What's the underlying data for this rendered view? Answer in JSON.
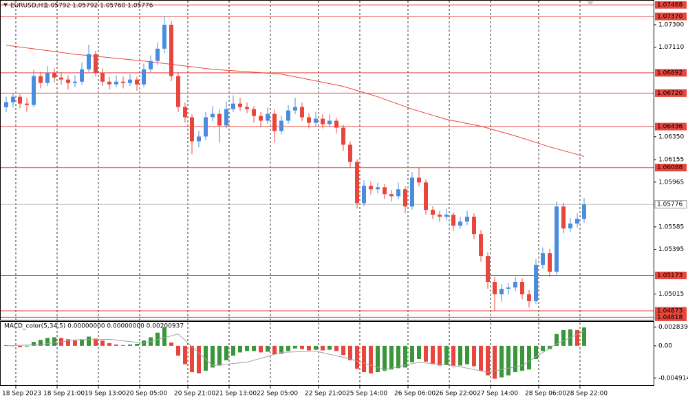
{
  "chart_data": [
    {
      "type": "candlestick",
      "title": "EURUSD,H1",
      "ohlc_text": "1.05792 1.05792 1.05760 1.05776",
      "bull_color": "#4a8de0",
      "bear_color": "#e8453c",
      "ma_color": "#e8453c",
      "level_color": "#e8453c",
      "ylim": [
        1.04797,
        1.07504
      ],
      "yticks": [
        {
          "value": 1.073,
          "label": "1.07300"
        },
        {
          "value": 1.0711,
          "label": "1.07110"
        },
        {
          "value": 1.0635,
          "label": "1.06350"
        },
        {
          "value": 1.06155,
          "label": "1.06155"
        },
        {
          "value": 1.05965,
          "label": "1.05965"
        },
        {
          "value": 1.05585,
          "label": "1.05585"
        },
        {
          "value": 1.05395,
          "label": "1.05395"
        },
        {
          "value": 1.05015,
          "label": "1.05015"
        }
      ],
      "levels": [
        {
          "value": 1.07468,
          "label": "1.07468"
        },
        {
          "value": 1.0737,
          "label": "1.07370"
        },
        {
          "value": 1.06892,
          "label": "1.06892"
        },
        {
          "value": 1.0672,
          "label": "1.06720"
        },
        {
          "value": 1.06436,
          "label": "1.06436"
        },
        {
          "value": 1.06088,
          "label": "1.06088"
        },
        {
          "value": 1.05173,
          "label": "1.05173"
        },
        {
          "value": 1.04873,
          "label": "1.04873"
        },
        {
          "value": 1.04818,
          "label": "1.04818"
        }
      ],
      "current_price": {
        "value": 1.05776,
        "label": "1.05776"
      },
      "xticks": [
        {
          "value": 0,
          "label": "18 Sep 2023"
        },
        {
          "value": 6,
          "label": "18 Sep 21:00"
        },
        {
          "value": 12,
          "label": "19 Sep 13:00"
        },
        {
          "value": 18,
          "label": "20 Sep 05:00"
        },
        {
          "value": 25,
          "label": "20 Sep 21:00"
        },
        {
          "value": 31,
          "label": "21 Sep 13:00"
        },
        {
          "value": 37,
          "label": "22 Sep 05:00"
        },
        {
          "value": 44,
          "label": "22 Sep 21:00"
        },
        {
          "value": 50,
          "label": "25 Sep 14:00"
        },
        {
          "value": 57,
          "label": "26 Sep 06:00"
        },
        {
          "value": 63,
          "label": "26 Sep 22:00"
        },
        {
          "value": 69,
          "label": "27 Sep 14:00"
        },
        {
          "value": 76,
          "label": "28 Sep 06:00"
        },
        {
          "value": 82,
          "label": "28 Sep 22:00"
        }
      ],
      "candles": [
        [
          1.066,
          1.0669,
          1.0656,
          1.06643
        ],
        [
          1.06643,
          1.0672,
          1.066,
          1.06689
        ],
        [
          1.06689,
          1.0671,
          1.0659,
          1.06631
        ],
        [
          1.06631,
          1.0668,
          1.0656,
          1.06619
        ],
        [
          1.06619,
          1.0692,
          1.066,
          1.06864
        ],
        [
          1.06864,
          1.069,
          1.0676,
          1.06806
        ],
        [
          1.06806,
          1.0695,
          1.0678,
          1.06893
        ],
        [
          1.06893,
          1.0693,
          1.0681,
          1.06852
        ],
        [
          1.06852,
          1.069,
          1.0679,
          1.06835
        ],
        [
          1.06835,
          1.0687,
          1.0675,
          1.06806
        ],
        [
          1.06806,
          1.0687,
          1.0677,
          1.06817
        ],
        [
          1.06817,
          1.0698,
          1.0679,
          1.06922
        ],
        [
          1.06922,
          1.0713,
          1.069,
          1.0705
        ],
        [
          1.0705,
          1.0708,
          1.0686,
          1.06893
        ],
        [
          1.06893,
          1.0693,
          1.0678,
          1.06817
        ],
        [
          1.06817,
          1.0686,
          1.0675,
          1.06794
        ],
        [
          1.06794,
          1.0687,
          1.0677,
          1.06817
        ],
        [
          1.06817,
          1.0686,
          1.0676,
          1.06806
        ],
        [
          1.06806,
          1.0688,
          1.0678,
          1.06835
        ],
        [
          1.06835,
          1.0686,
          1.0674,
          1.06794
        ],
        [
          1.06794,
          1.0697,
          1.0677,
          1.06922
        ],
        [
          1.06922,
          1.0704,
          1.069,
          1.06992
        ],
        [
          1.06992,
          1.0715,
          1.0696,
          1.07097
        ],
        [
          1.07097,
          1.0737,
          1.0706,
          1.073
        ],
        [
          1.073,
          1.0733,
          1.0682,
          1.06864
        ],
        [
          1.06864,
          1.069,
          1.0656,
          1.06602
        ],
        [
          1.06602,
          1.0664,
          1.0647,
          1.06515
        ],
        [
          1.06515,
          1.0654,
          1.062,
          1.06311
        ],
        [
          1.06311,
          1.064,
          1.0626,
          1.06352
        ],
        [
          1.06352,
          1.0656,
          1.0632,
          1.06515
        ],
        [
          1.06515,
          1.0661,
          1.0648,
          1.06544
        ],
        [
          1.06544,
          1.0658,
          1.063,
          1.06445
        ],
        [
          1.06445,
          1.0665,
          1.0642,
          1.06584
        ],
        [
          1.06584,
          1.067,
          1.0656,
          1.06631
        ],
        [
          1.06631,
          1.0668,
          1.0657,
          1.06602
        ],
        [
          1.06602,
          1.0664,
          1.0655,
          1.06584
        ],
        [
          1.06584,
          1.0661,
          1.0647,
          1.06526
        ],
        [
          1.06526,
          1.0656,
          1.0643,
          1.06486
        ],
        [
          1.06486,
          1.066,
          1.0646,
          1.06544
        ],
        [
          1.06544,
          1.0658,
          1.063,
          1.06398
        ],
        [
          1.06398,
          1.0653,
          1.0637,
          1.06486
        ],
        [
          1.06486,
          1.0662,
          1.0646,
          1.06573
        ],
        [
          1.06573,
          1.0668,
          1.0654,
          1.06602
        ],
        [
          1.06602,
          1.0664,
          1.0648,
          1.06515
        ],
        [
          1.06515,
          1.0655,
          1.0642,
          1.06468
        ],
        [
          1.06468,
          1.0656,
          1.0644,
          1.06503
        ],
        [
          1.06503,
          1.0654,
          1.0642,
          1.06456
        ],
        [
          1.06456,
          1.0654,
          1.0643,
          1.06486
        ],
        [
          1.06486,
          1.0651,
          1.0638,
          1.06427
        ],
        [
          1.06427,
          1.0645,
          1.0623,
          1.06282
        ],
        [
          1.06282,
          1.0631,
          1.0609,
          1.06136
        ],
        [
          1.06136,
          1.0616,
          1.0574,
          1.05787
        ],
        [
          1.05787,
          1.0598,
          1.0576,
          1.05933
        ],
        [
          1.05933,
          1.0597,
          1.0586,
          1.05904
        ],
        [
          1.05904,
          1.0596,
          1.0587,
          1.05921
        ],
        [
          1.05921,
          1.0595,
          1.0582,
          1.05863
        ],
        [
          1.05863,
          1.059,
          1.058,
          1.05845
        ],
        [
          1.05845,
          1.0596,
          1.0582,
          1.05904
        ],
        [
          1.05904,
          1.0593,
          1.057,
          1.05758
        ],
        [
          1.05758,
          1.0605,
          1.0573,
          1.06002
        ],
        [
          1.06002,
          1.0609,
          1.0593,
          1.05962
        ],
        [
          1.05962,
          1.0599,
          1.0569,
          1.05729
        ],
        [
          1.05729,
          1.0576,
          1.0565,
          1.05688
        ],
        [
          1.05688,
          1.0572,
          1.0563,
          1.05671
        ],
        [
          1.05671,
          1.0574,
          1.0564,
          1.05688
        ],
        [
          1.05688,
          1.0571,
          1.0555,
          1.05595
        ],
        [
          1.05595,
          1.0567,
          1.0557,
          1.0563
        ],
        [
          1.0563,
          1.0572,
          1.056,
          1.05671
        ],
        [
          1.05671,
          1.057,
          1.0548,
          1.05525
        ],
        [
          1.05525,
          1.0556,
          1.0529,
          1.05339
        ],
        [
          1.05339,
          1.0537,
          1.0506,
          1.05118
        ],
        [
          1.05118,
          1.0516,
          1.04873,
          1.05013
        ],
        [
          1.05013,
          1.051,
          1.0495,
          1.0506
        ],
        [
          1.0506,
          1.0511,
          1.0501,
          1.05071
        ],
        [
          1.05071,
          1.0516,
          1.0504,
          1.05118
        ],
        [
          1.05118,
          1.0515,
          1.0497,
          1.05013
        ],
        [
          1.05013,
          1.0505,
          1.049,
          1.04955
        ],
        [
          1.04955,
          1.0531,
          1.0493,
          1.05263
        ],
        [
          1.05263,
          1.0541,
          1.0523,
          1.05362
        ],
        [
          1.05362,
          1.054,
          1.0516,
          1.05205
        ],
        [
          1.05205,
          1.058,
          1.0518,
          1.05758
        ],
        [
          1.05758,
          1.0579,
          1.0553,
          1.05572
        ],
        [
          1.05572,
          1.0566,
          1.0554,
          1.05613
        ],
        [
          1.05613,
          1.057,
          1.0558,
          1.05653
        ],
        [
          1.05653,
          1.0583,
          1.0562,
          1.05776
        ]
      ],
      "ma_x": [
        0,
        10,
        20,
        30,
        40,
        44,
        49,
        54,
        59,
        64,
        69,
        74,
        79,
        84
      ],
      "ma_values": [
        1.07126,
        1.0705,
        1.06992,
        1.06922,
        1.06881,
        1.06835,
        1.06777,
        1.06689,
        1.06584,
        1.06497,
        1.06439,
        1.06357,
        1.06264,
        1.06183
      ]
    },
    {
      "type": "histogram",
      "title": "MACD_color(5,34,5) 0.00000000 0.00000000 0.00200937",
      "up_color": "#3a963a",
      "down_color": "#e8453c",
      "signal_color": "#a0a0a0",
      "ylim": [
        -0.00598,
        0.00365
      ],
      "yticks": [
        0.0028396,
        {
          "value": 0,
          "label": "0.00"
        },
        {
          "value": -0.004914,
          "label": "-0.0049140"
        }
      ],
      "values": [
        0.0001,
        0,
        -0.0002,
        -0.0001,
        0.0006,
        0.0009,
        0.0012,
        0.0013,
        0.0012,
        0.001,
        0.0008,
        0.001,
        0.0014,
        0.0011,
        0.0008,
        0.0004,
        0.0002,
        0.0001,
        0.0002,
        0.0003,
        0.0008,
        0.0013,
        0.002,
        0.0028,
        0.0005,
        -0.0015,
        -0.0028,
        -0.004,
        -0.0042,
        -0.0038,
        -0.0033,
        -0.003,
        -0.0022,
        -0.0015,
        -0.001,
        -0.0008,
        -0.0008,
        -0.001,
        -0.0009,
        -0.0013,
        -0.0012,
        -0.0008,
        -0.0004,
        -0.0005,
        -0.0007,
        -0.0006,
        -0.0007,
        -0.0006,
        -0.0008,
        -0.0014,
        -0.0022,
        -0.0035,
        -0.004,
        -0.0042,
        -0.004,
        -0.0038,
        -0.0036,
        -0.0034,
        -0.0033,
        -0.0025,
        -0.002,
        -0.0024,
        -0.0028,
        -0.003,
        -0.0029,
        -0.0031,
        -0.003,
        -0.0028,
        -0.0031,
        -0.0038,
        -0.0045,
        -0.005,
        -0.0048,
        -0.0045,
        -0.004,
        -0.0038,
        -0.0036,
        -0.002,
        -0.0008,
        -0.0005,
        0.0018,
        0.0024,
        0.0025,
        0.0024,
        0.0028
      ],
      "signal_x": [
        0,
        5,
        10,
        15,
        20,
        25,
        30,
        35,
        40,
        45,
        50,
        55,
        60,
        65,
        70,
        75,
        80,
        84
      ],
      "signal_values": [
        0,
        0.0002,
        0.0009,
        0.001,
        0.0004,
        0.0018,
        -0.003,
        -0.0025,
        -0.001,
        -0.0008,
        -0.002,
        -0.0036,
        -0.0025,
        -0.003,
        -0.004,
        -0.003,
        0.0003,
        0.0022
      ]
    }
  ]
}
